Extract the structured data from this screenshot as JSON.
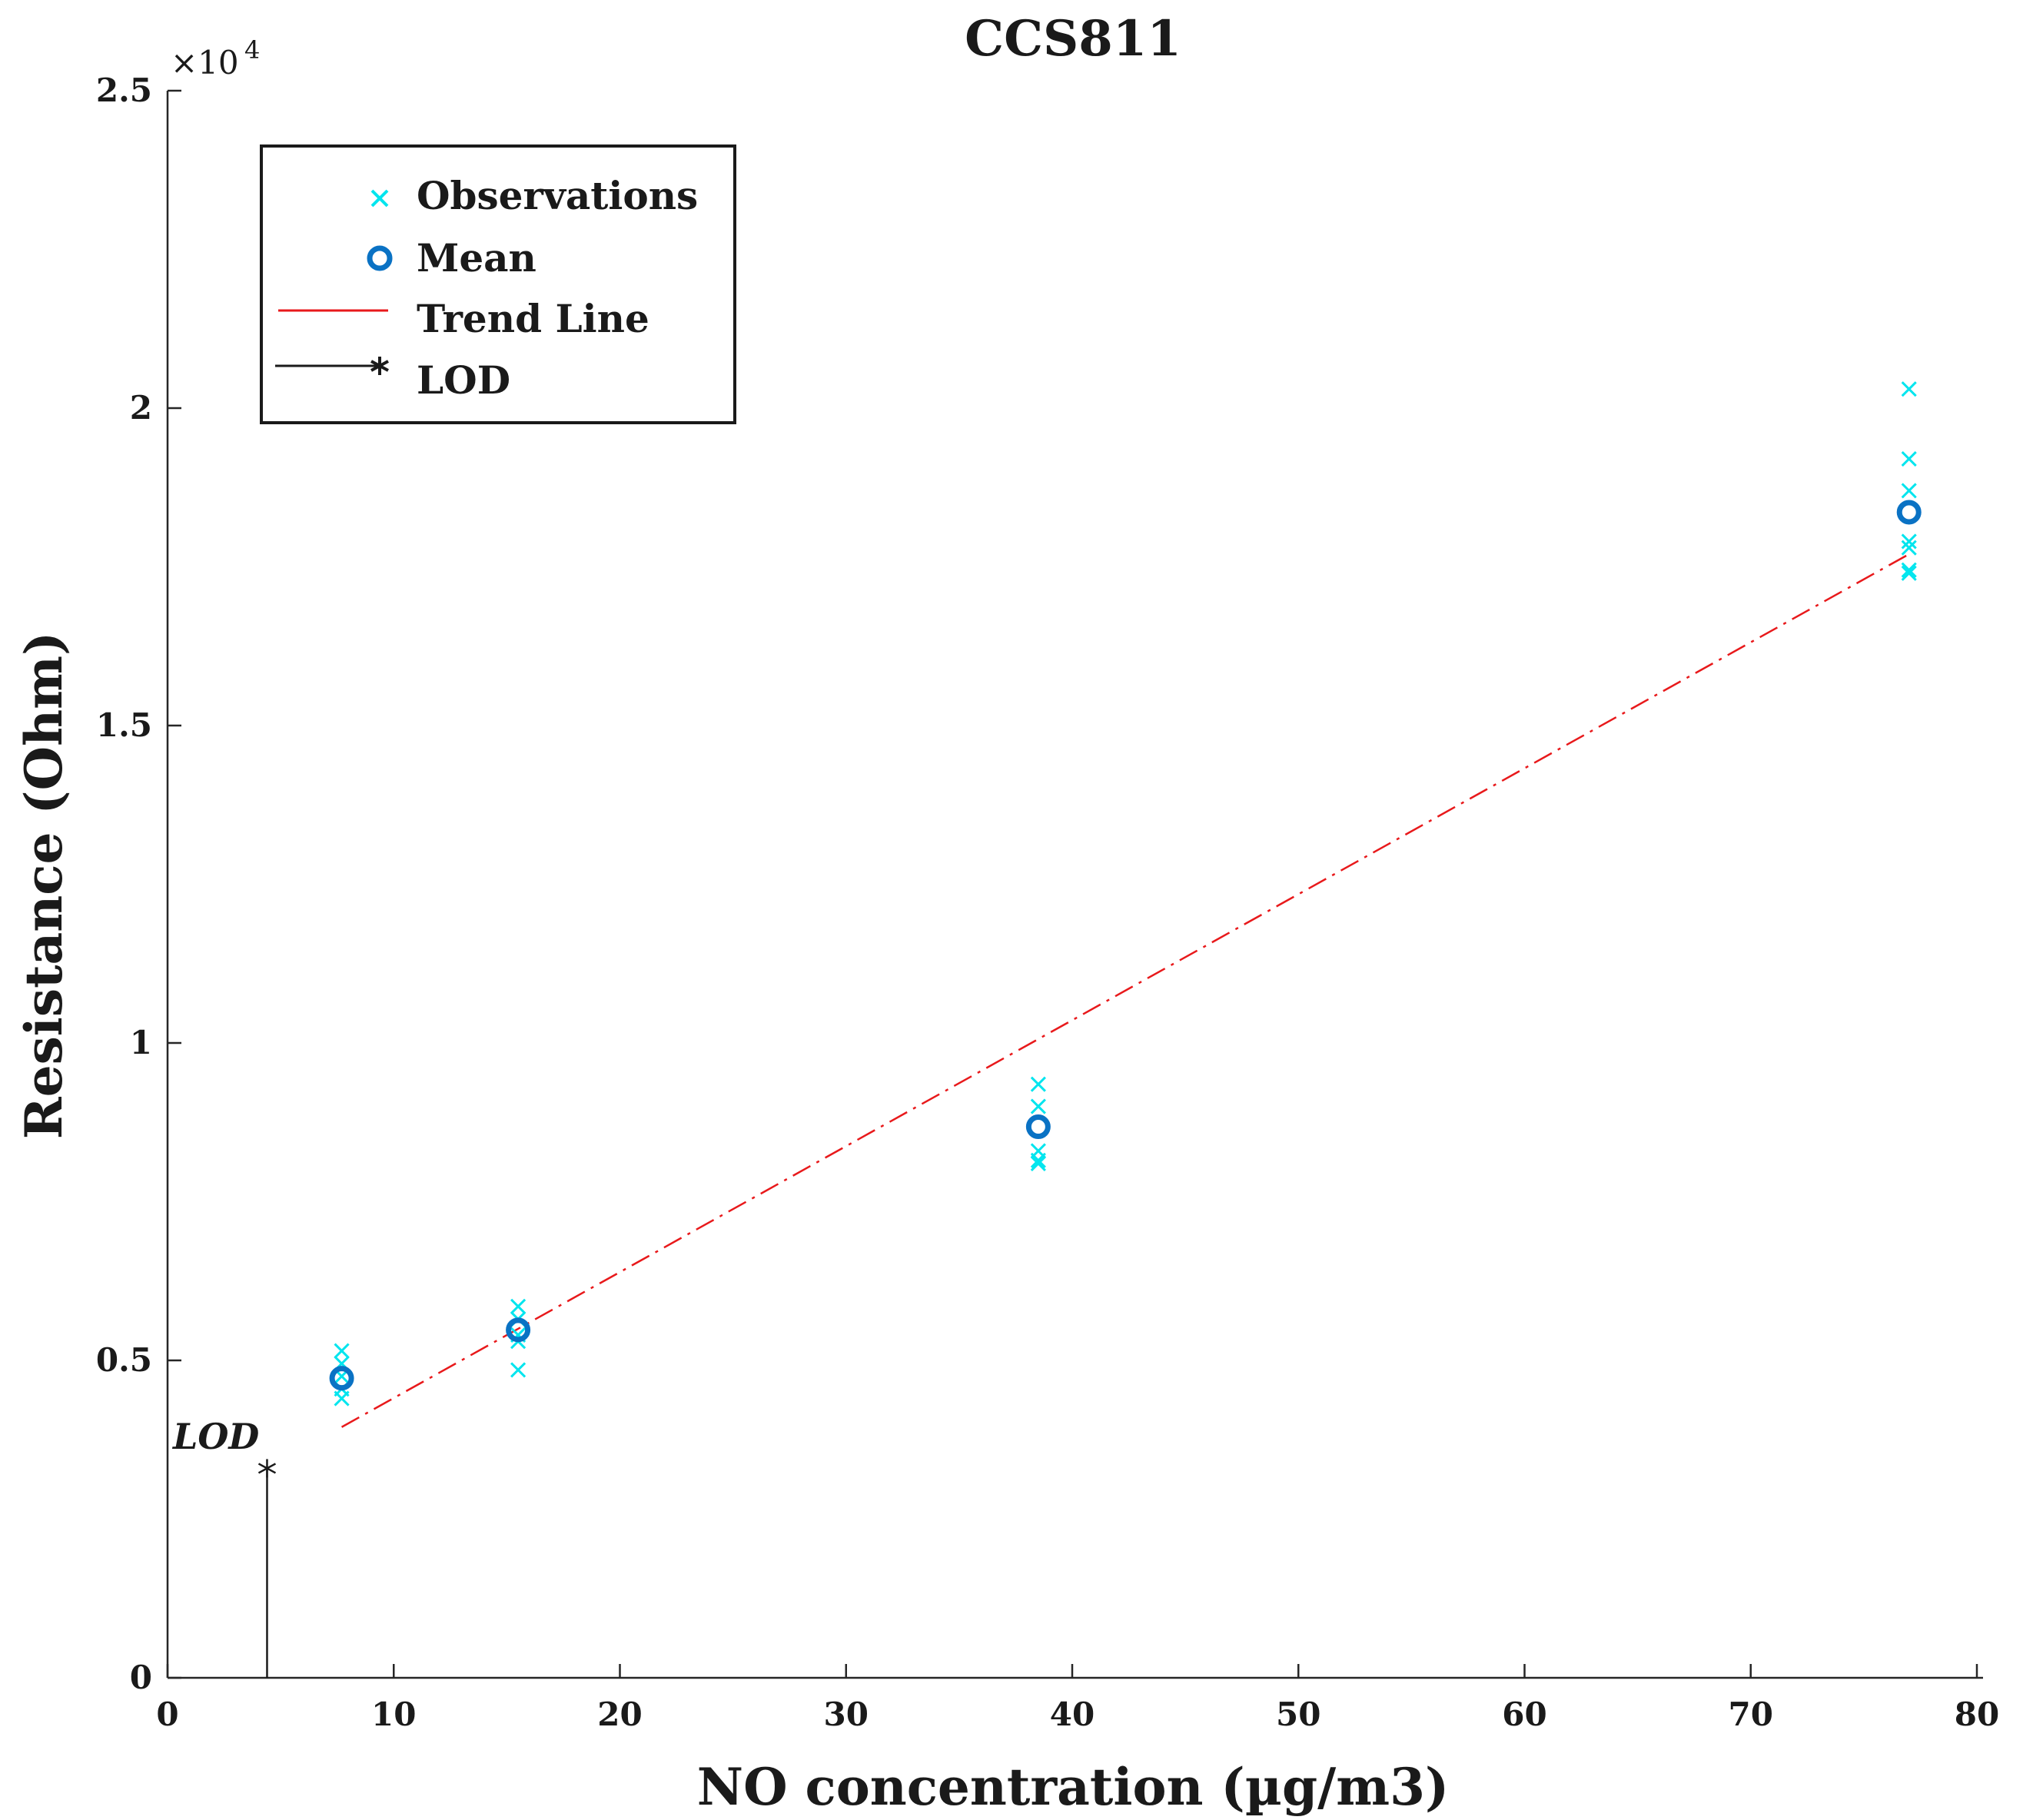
{
  "chart_data": {
    "type": "scatter",
    "title": "CCS811",
    "xlabel": "NO concentration (µg/m3)",
    "ylabel": "Resistance (Ohm)",
    "xlim": [
      0,
      80
    ],
    "ylim": [
      0,
      25000
    ],
    "y_multiplier_label": "×10",
    "y_multiplier_exponent": "4",
    "x_ticks": [
      0,
      10,
      20,
      30,
      40,
      50,
      60,
      70,
      80
    ],
    "x_tick_labels": [
      "0",
      "10",
      "20",
      "30",
      "40",
      "50",
      "60",
      "70",
      "80"
    ],
    "y_ticks": [
      0,
      5000,
      10000,
      15000,
      20000,
      25000
    ],
    "y_tick_labels": [
      "0",
      "0.5",
      "1",
      "1.5",
      "2",
      "2.5"
    ],
    "legend": {
      "position": "top-left",
      "entries": [
        {
          "label": "Observations",
          "marker": "x",
          "color": "#00e5ee"
        },
        {
          "label": "Mean",
          "marker": "circle",
          "color": "#0a72c4"
        },
        {
          "label": "Trend Line",
          "marker": "line",
          "color": "#e8191b"
        },
        {
          "label": "LOD",
          "marker": "line-star",
          "color": "#1a1a1a"
        }
      ]
    },
    "series": [
      {
        "name": "Observations",
        "color": "#00e5ee",
        "x": [
          7.7,
          7.7,
          7.7,
          7.7,
          7.7,
          15.5,
          15.5,
          15.5,
          15.5,
          15.5,
          38.5,
          38.5,
          38.5,
          38.5,
          38.5,
          77,
          77,
          77,
          77,
          77,
          77,
          77
        ],
        "y": [
          5150,
          4950,
          4750,
          4550,
          4400,
          5850,
          5650,
          5400,
          5300,
          4850,
          9350,
          9000,
          8300,
          8150,
          8100,
          20300,
          19200,
          18700,
          17900,
          17800,
          17450,
          17400
        ]
      },
      {
        "name": "Mean",
        "color": "#0a72c4",
        "x": [
          7.7,
          15.5,
          38.5,
          77
        ],
        "y": [
          4720,
          5480,
          8680,
          18360
        ]
      },
      {
        "name": "Trend Line",
        "color": "#e8191b",
        "x": [
          7.7,
          77
        ],
        "y": [
          3950,
          17700
        ]
      },
      {
        "name": "LOD",
        "color": "#1a1a1a",
        "x": [
          4.4,
          4.4
        ],
        "y": [
          0,
          3300
        ]
      }
    ],
    "annotations": [
      {
        "text": "LOD",
        "x": 4.4,
        "y": 3300
      }
    ]
  }
}
